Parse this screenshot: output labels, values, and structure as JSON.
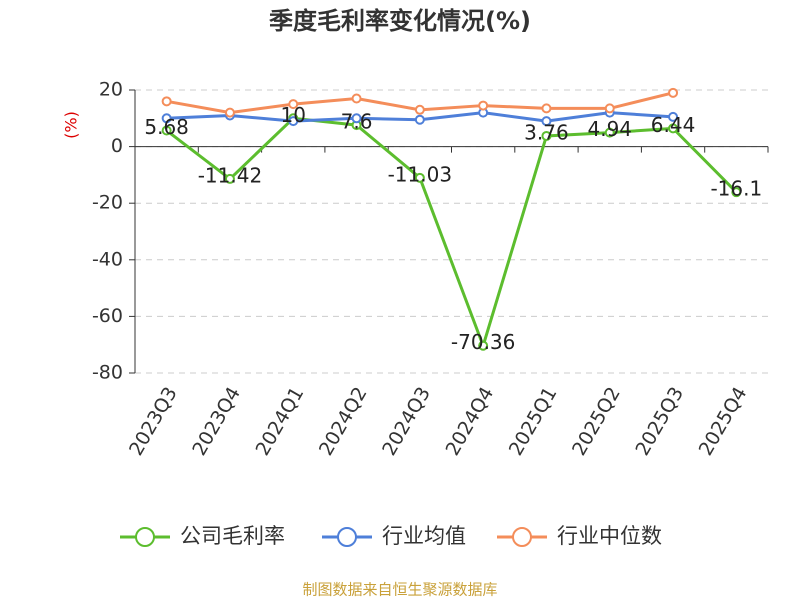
{
  "chart_data": {
    "type": "line",
    "title": "季度毛利率变化情况(%)",
    "y_label": "(%)",
    "categories": [
      "2023Q3",
      "2023Q4",
      "2024Q1",
      "2024Q2",
      "2024Q3",
      "2024Q4",
      "2025Q1",
      "2025Q2",
      "2025Q3",
      "2025Q4"
    ],
    "series": [
      {
        "name": "公司毛利率",
        "color": "#5cbd2e",
        "values": [
          5.68,
          -11.42,
          10,
          7.6,
          -11.03,
          -70.36,
          3.76,
          4.94,
          6.44,
          -16.1
        ],
        "data_labels": true
      },
      {
        "name": "行业均值",
        "color": "#4e7fd9",
        "values": [
          10,
          11,
          9,
          10,
          9.5,
          12,
          9,
          12,
          10.5,
          null
        ]
      },
      {
        "name": "行业中位数",
        "color": "#f48d5a",
        "values": [
          16,
          12,
          15,
          17,
          13,
          14.5,
          13.5,
          13.5,
          19,
          null
        ]
      }
    ],
    "ylim": [
      -80,
      20
    ],
    "yticks": [
      -80,
      -60,
      -40,
      -20,
      0,
      20
    ],
    "grid": true,
    "source": "制图数据来自恒生聚源数据库"
  }
}
